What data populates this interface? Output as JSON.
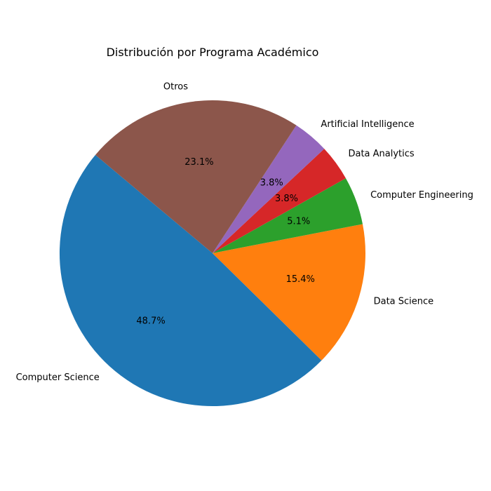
{
  "chart_data": {
    "type": "pie",
    "title": "Distribución por Programa Académico",
    "categories": [
      "Computer Science",
      "Data Science",
      "Computer Engineering",
      "Data Analytics",
      "Artificial Intelligence",
      "Otros"
    ],
    "values": [
      48.7,
      15.4,
      5.1,
      3.8,
      3.8,
      23.1
    ],
    "value_labels": [
      "48.7%",
      "15.4%",
      "5.1%",
      "3.8%",
      "3.8%",
      "23.1%"
    ],
    "colors": [
      "#1f77b4",
      "#ff7f0e",
      "#2ca02c",
      "#d62728",
      "#9467bd",
      "#8c564b"
    ],
    "start_angle_deg": 140,
    "direction": "counterclockwise"
  }
}
